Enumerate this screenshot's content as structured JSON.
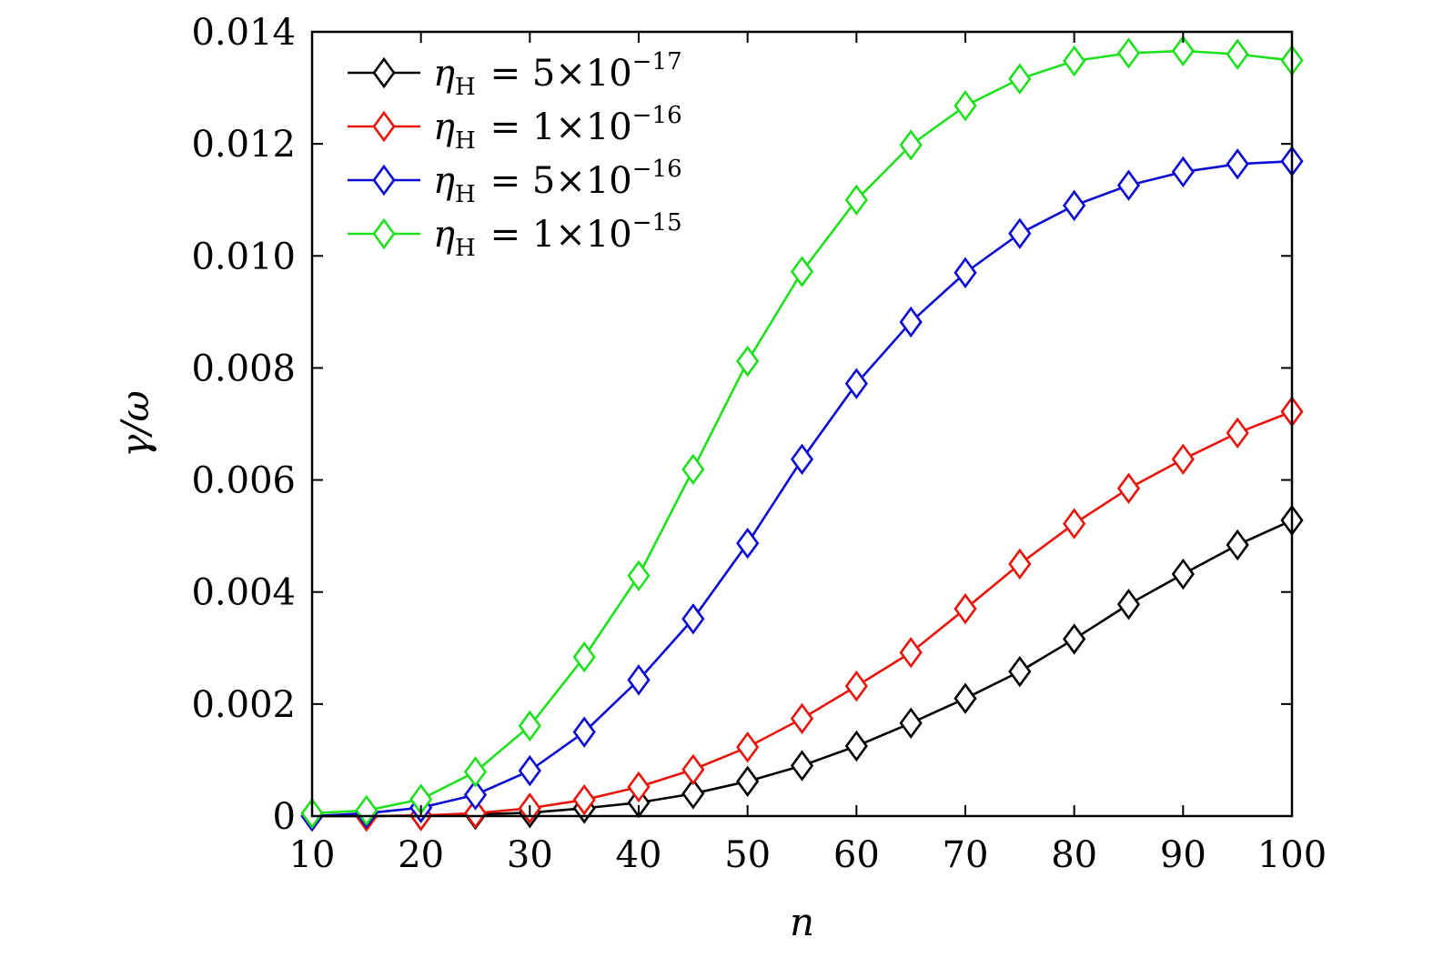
{
  "chart_data": {
    "type": "line",
    "xlabel": "n",
    "ylabel": "γ/ω",
    "xlim": [
      10,
      100
    ],
    "ylim": [
      0,
      0.014
    ],
    "grid": false,
    "legend_position": "top-left",
    "marker": "diamond",
    "x_ticks": [
      10,
      20,
      30,
      40,
      50,
      60,
      70,
      80,
      90,
      100
    ],
    "x_tick_labels": [
      "10",
      "20",
      "30",
      "40",
      "50",
      "60",
      "70",
      "80",
      "90",
      "100"
    ],
    "y_ticks": [
      0,
      0.002,
      0.004,
      0.006,
      0.008,
      0.01,
      0.012,
      0.014
    ],
    "y_tick_labels": [
      "0",
      "0.002",
      "0.004",
      "0.006",
      "0.008",
      "0.010",
      "0.012",
      "0.014"
    ],
    "x": [
      10,
      15,
      20,
      25,
      30,
      35,
      40,
      45,
      50,
      55,
      60,
      65,
      70,
      75,
      80,
      85,
      90,
      95,
      100
    ],
    "series": [
      {
        "name": "η_H = 5×10^−17",
        "legend": {
          "symbol": "η",
          "sub": "H",
          "coef": "5",
          "exp": "−17"
        },
        "color": "#000000",
        "values": [
          0.0,
          0.0,
          1e-05,
          3e-05,
          6e-05,
          0.00014,
          0.00024,
          0.0004,
          0.00062,
          0.0009,
          0.00125,
          0.00166,
          0.0021,
          0.00258,
          0.00316,
          0.00378,
          0.00432,
          0.00484,
          0.00528
        ]
      },
      {
        "name": "η_H = 1×10^−16",
        "legend": {
          "symbol": "η",
          "sub": "H",
          "coef": "1",
          "exp": "−16"
        },
        "color": "#e8140a",
        "values": [
          0.0,
          0.0,
          1e-05,
          5e-05,
          0.00014,
          0.00029,
          0.00052,
          0.00083,
          0.00123,
          0.00174,
          0.00232,
          0.00292,
          0.0037,
          0.0045,
          0.00522,
          0.00585,
          0.00637,
          0.00684,
          0.00722
        ]
      },
      {
        "name": "η_H = 5×10^−16",
        "legend": {
          "symbol": "η",
          "sub": "H",
          "coef": "5",
          "exp": "−16"
        },
        "color": "#0a0ad2",
        "values": [
          0.0,
          5e-05,
          0.00015,
          0.00038,
          0.00081,
          0.0015,
          0.00243,
          0.00352,
          0.00487,
          0.00637,
          0.00772,
          0.00882,
          0.0097,
          0.0104,
          0.0109,
          0.01126,
          0.0115,
          0.01164,
          0.01169
        ]
      },
      {
        "name": "η_H = 1×10^−15",
        "legend": {
          "symbol": "η",
          "sub": "H",
          "coef": "1",
          "exp": "−15"
        },
        "color": "#1fe01f",
        "values": [
          5e-05,
          0.0001,
          0.0003,
          0.00079,
          0.00161,
          0.00284,
          0.00429,
          0.00619,
          0.00812,
          0.00972,
          0.011,
          0.01198,
          0.01268,
          0.01316,
          0.01348,
          0.01362,
          0.01366,
          0.0136,
          0.01349
        ]
      }
    ]
  }
}
